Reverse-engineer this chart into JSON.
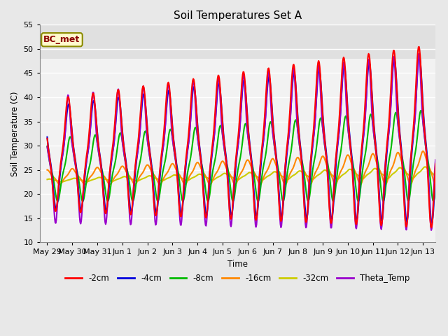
{
  "title": "Soil Temperatures Set A",
  "xlabel": "Time",
  "ylabel": "Soil Temperature (C)",
  "ylim": [
    10,
    55
  ],
  "tick_labels": [
    "May 29",
    "May 30",
    "May 31",
    "Jun 1",
    "Jun 2",
    "Jun 3",
    "Jun 4",
    "Jun 5",
    "Jun 6",
    "Jun 7",
    "Jun 8",
    "Jun 9",
    "Jun 10",
    "Jun 11",
    "Jun 12",
    "Jun 13"
  ],
  "tick_positions": [
    0,
    1,
    2,
    3,
    4,
    5,
    6,
    7,
    8,
    9,
    10,
    11,
    12,
    13,
    14,
    15
  ],
  "series": {
    "-2cm": {
      "color": "#FF0000",
      "lw": 1.5
    },
    "-4cm": {
      "color": "#0000DD",
      "lw": 1.5
    },
    "-8cm": {
      "color": "#00BB00",
      "lw": 1.5
    },
    "-16cm": {
      "color": "#FF8800",
      "lw": 1.5
    },
    "-32cm": {
      "color": "#CCCC00",
      "lw": 1.5
    },
    "Theta_Temp": {
      "color": "#9900CC",
      "lw": 1.5
    }
  },
  "annotation_text": "BC_met",
  "bg_color": "#E8E8E8",
  "plot_bg": "#F2F2F2",
  "shade_band": [
    48,
    55
  ],
  "shade_color": "#E0E0E0",
  "grid_color": "#FFFFFF",
  "legend_ncol": 6,
  "title_fontsize": 11
}
